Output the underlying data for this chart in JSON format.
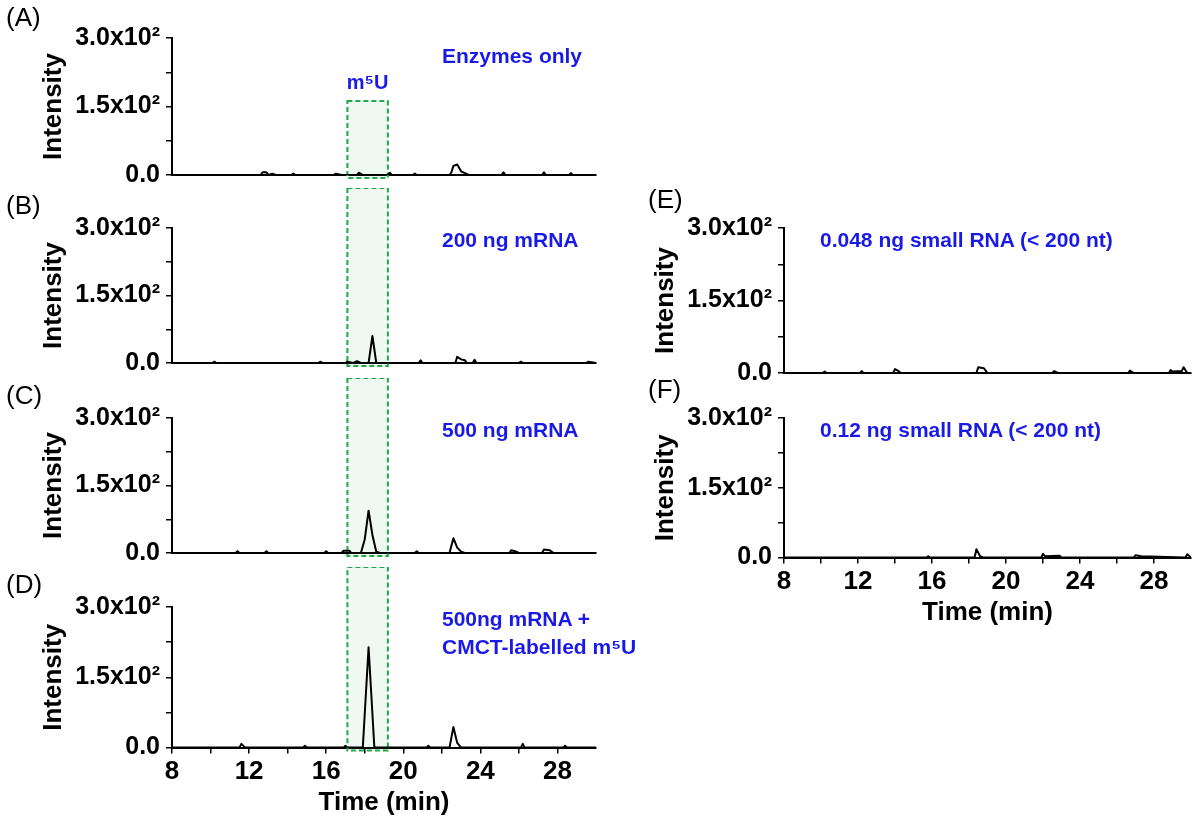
{
  "chart_data": [
    {
      "type": "line",
      "annotations": [
        "(A)",
        "Enzymes only"
      ],
      "ylabel": "Intensity",
      "tick_labels": "y",
      "xlim": [
        8,
        30
      ],
      "ylim": [
        0,
        300
      ],
      "yticks": [
        {
          "value": 0,
          "label": "0.0"
        },
        {
          "value": 75,
          "label": null
        },
        {
          "value": 150,
          "label": "1.5x10²"
        },
        {
          "value": 225,
          "label": null
        },
        {
          "value": 300,
          "label": "3.0x10²"
        }
      ],
      "bands": [
        {
          "axis": "x",
          "from": 17.1,
          "to": 19.2,
          "label": "m⁵U",
          "color": "#22a84a"
        }
      ],
      "series": [
        {
          "color": "#000000",
          "x": [
            8,
            12.6,
            12.7,
            12.9,
            13.0,
            13.2,
            13.4,
            14.2,
            14.3,
            14.4,
            16.4,
            16.5,
            16.8,
            17.6,
            17.7,
            17.9,
            19.2,
            19.3,
            19.4,
            20.5,
            20.6,
            20.7,
            22.4,
            22.5,
            22.6,
            22.8,
            23.0,
            23.2,
            23.4,
            25.1,
            25.2,
            25.3,
            27.2,
            27.3,
            27.4,
            28.6,
            28.7,
            28.8,
            30
          ],
          "values": [
            0,
            0,
            6,
            6,
            0,
            3,
            0,
            0,
            3,
            0,
            0,
            3,
            0,
            0,
            5,
            0,
            0,
            5,
            0,
            0,
            3,
            0,
            0,
            6,
            20,
            23,
            8,
            4,
            0,
            0,
            6,
            0,
            0,
            6,
            0,
            0,
            4,
            0,
            0
          ]
        }
      ]
    },
    {
      "type": "line",
      "annotations": [
        "(B)",
        "200 ng mRNA"
      ],
      "ylabel": "Intensity",
      "tick_labels": "y",
      "xlim": [
        8,
        30
      ],
      "ylim": [
        0,
        300
      ],
      "yticks": [
        {
          "value": 0,
          "label": "0.0"
        },
        {
          "value": 75,
          "label": null
        },
        {
          "value": 150,
          "label": "1.5x10²"
        },
        {
          "value": 225,
          "label": null
        },
        {
          "value": 300,
          "label": "3.0x10²"
        }
      ],
      "bands": [
        {
          "axis": "x",
          "from": 17.1,
          "to": 19.2,
          "color": "#22a84a"
        }
      ],
      "series": [
        {
          "color": "#000000",
          "x": [
            8,
            10.1,
            10.2,
            10.3,
            15.6,
            15.7,
            15.8,
            17.0,
            17.1,
            17.4,
            17.6,
            17.8,
            18.2,
            18.4,
            18.6,
            20.8,
            20.9,
            21.0,
            22.7,
            22.8,
            23.0,
            23.2,
            23.3,
            23.6,
            23.7,
            23.8,
            26.0,
            26.1,
            26.2,
            29.5,
            29.6,
            30
          ],
          "values": [
            0,
            0,
            3,
            0,
            0,
            3,
            0,
            0,
            3,
            0,
            4,
            0,
            0,
            60,
            0,
            0,
            6,
            0,
            0,
            14,
            8,
            6,
            0,
            0,
            7,
            0,
            0,
            3,
            0,
            0,
            3,
            0
          ]
        }
      ]
    },
    {
      "type": "line",
      "annotations": [
        "(C)",
        "500 ng mRNA"
      ],
      "ylabel": "Intensity",
      "tick_labels": "y",
      "xlim": [
        8,
        30
      ],
      "ylim": [
        0,
        300
      ],
      "yticks": [
        {
          "value": 0,
          "label": "0.0"
        },
        {
          "value": 75,
          "label": null
        },
        {
          "value": 150,
          "label": "1.5x10²"
        },
        {
          "value": 225,
          "label": null
        },
        {
          "value": 300,
          "label": "3.0x10²"
        }
      ],
      "bands": [
        {
          "axis": "x",
          "from": 17.1,
          "to": 19.2,
          "color": "#22a84a"
        }
      ],
      "series": [
        {
          "color": "#000000",
          "x": [
            8,
            11.3,
            11.4,
            11.5,
            12.8,
            12.9,
            13.0,
            15.9,
            16.0,
            16.1,
            16.8,
            16.9,
            17.2,
            17.3,
            17.8,
            18.0,
            18.2,
            18.4,
            18.6,
            18.8,
            20.6,
            20.7,
            20.8,
            22.4,
            22.6,
            22.8,
            23.0,
            23.2,
            25.5,
            25.6,
            25.8,
            26.0,
            27.2,
            27.3,
            27.6,
            27.8,
            30
          ],
          "values": [
            0,
            0,
            4,
            0,
            0,
            4,
            0,
            0,
            4,
            0,
            0,
            5,
            5,
            0,
            0,
            30,
            94,
            40,
            3,
            0,
            0,
            4,
            0,
            0,
            33,
            12,
            3,
            0,
            0,
            6,
            4,
            0,
            0,
            8,
            6,
            0,
            0
          ]
        }
      ]
    },
    {
      "type": "line",
      "annotations": [
        "(D)",
        "500ng mRNA +\nCMCT-labelled m⁵U"
      ],
      "xlabel": "Time (min)",
      "ylabel": "Intensity",
      "xlim": [
        8,
        30
      ],
      "xticks": [
        8,
        {
          "value": 10,
          "label": null
        },
        12,
        {
          "value": 14,
          "label": null
        },
        16,
        {
          "value": 18,
          "label": null
        },
        20,
        {
          "value": 22,
          "label": null
        },
        24,
        {
          "value": 26,
          "label": null
        },
        28
      ],
      "ylim": [
        0,
        300
      ],
      "yticks": [
        {
          "value": 0,
          "label": "0.0"
        },
        {
          "value": 75,
          "label": null
        },
        {
          "value": 150,
          "label": "1.5x10²"
        },
        {
          "value": 225,
          "label": null
        },
        {
          "value": 300,
          "label": "3.0x10²"
        }
      ],
      "bands": [
        {
          "axis": "x",
          "from": 17.1,
          "to": 19.2,
          "color": "#22a84a"
        }
      ],
      "series": [
        {
          "color": "#000000",
          "x": [
            8,
            11.5,
            11.6,
            11.8,
            14.8,
            14.9,
            15.0,
            16.9,
            17.0,
            17.1,
            17.9,
            18.2,
            18.5,
            21.2,
            21.3,
            21.4,
            22.4,
            22.6,
            22.8,
            23.0,
            26.1,
            26.2,
            26.3,
            28.3,
            28.4,
            28.5,
            30
          ],
          "values": [
            0,
            0,
            8,
            0,
            0,
            4,
            0,
            0,
            4,
            0,
            0,
            214,
            0,
            0,
            4,
            0,
            0,
            44,
            10,
            0,
            0,
            8,
            0,
            0,
            4,
            0,
            0
          ]
        }
      ]
    },
    {
      "type": "line",
      "annotations": [
        "(E)",
        "0.048 ng small RNA (< 200 nt)"
      ],
      "ylabel": "Intensity",
      "tick_labels": "y",
      "xlim": [
        8,
        30
      ],
      "ylim": [
        0,
        300
      ],
      "yticks": [
        {
          "value": 0,
          "label": "0.0"
        },
        {
          "value": 75,
          "label": null
        },
        {
          "value": 150,
          "label": "1.5x10²"
        },
        {
          "value": 225,
          "label": null
        },
        {
          "value": 300,
          "label": "3.0x10²"
        }
      ],
      "series": [
        {
          "color": "#000000",
          "x": [
            8,
            10.1,
            10.2,
            10.3,
            12.1,
            12.2,
            12.3,
            13.9,
            14.0,
            14.2,
            14.3,
            18.4,
            18.5,
            18.8,
            19.0,
            22.5,
            22.6,
            22.8,
            26.6,
            26.7,
            26.9,
            28.8,
            28.9,
            29.0,
            29.5,
            29.6,
            29.8,
            30
          ],
          "values": [
            0,
            0,
            3,
            0,
            0,
            4,
            0,
            0,
            8,
            4,
            0,
            0,
            12,
            10,
            0,
            0,
            4,
            0,
            0,
            5,
            0,
            0,
            6,
            3,
            4,
            12,
            0,
            0
          ]
        }
      ]
    },
    {
      "type": "line",
      "annotations": [
        "(F)",
        "0.12 ng small RNA (< 200 nt)"
      ],
      "xlabel": "Time (min)",
      "ylabel": "Intensity",
      "xlim": [
        8,
        30
      ],
      "xticks": [
        8,
        {
          "value": 10,
          "label": null
        },
        12,
        {
          "value": 14,
          "label": null
        },
        16,
        {
          "value": 18,
          "label": null
        },
        20,
        {
          "value": 22,
          "label": null
        },
        24,
        {
          "value": 26,
          "label": null
        },
        28
      ],
      "ylim": [
        0,
        300
      ],
      "yticks": [
        {
          "value": 0,
          "label": "0.0"
        },
        {
          "value": 75,
          "label": null
        },
        {
          "value": 150,
          "label": "1.5x10²"
        },
        {
          "value": 225,
          "label": null
        },
        {
          "value": 300,
          "label": "3.0x10²"
        }
      ],
      "series": [
        {
          "color": "#000000",
          "x": [
            8,
            15.7,
            15.8,
            15.9,
            18.3,
            18.4,
            18.6,
            18.8,
            21.9,
            22.0,
            22.1,
            22.9,
            23.0,
            26.9,
            27.0,
            27.3,
            29.7,
            29.8,
            30
          ],
          "values": [
            0,
            0,
            3,
            0,
            0,
            18,
            3,
            0,
            0,
            8,
            3,
            4,
            0,
            0,
            5,
            3,
            0,
            7,
            0
          ]
        }
      ]
    }
  ]
}
